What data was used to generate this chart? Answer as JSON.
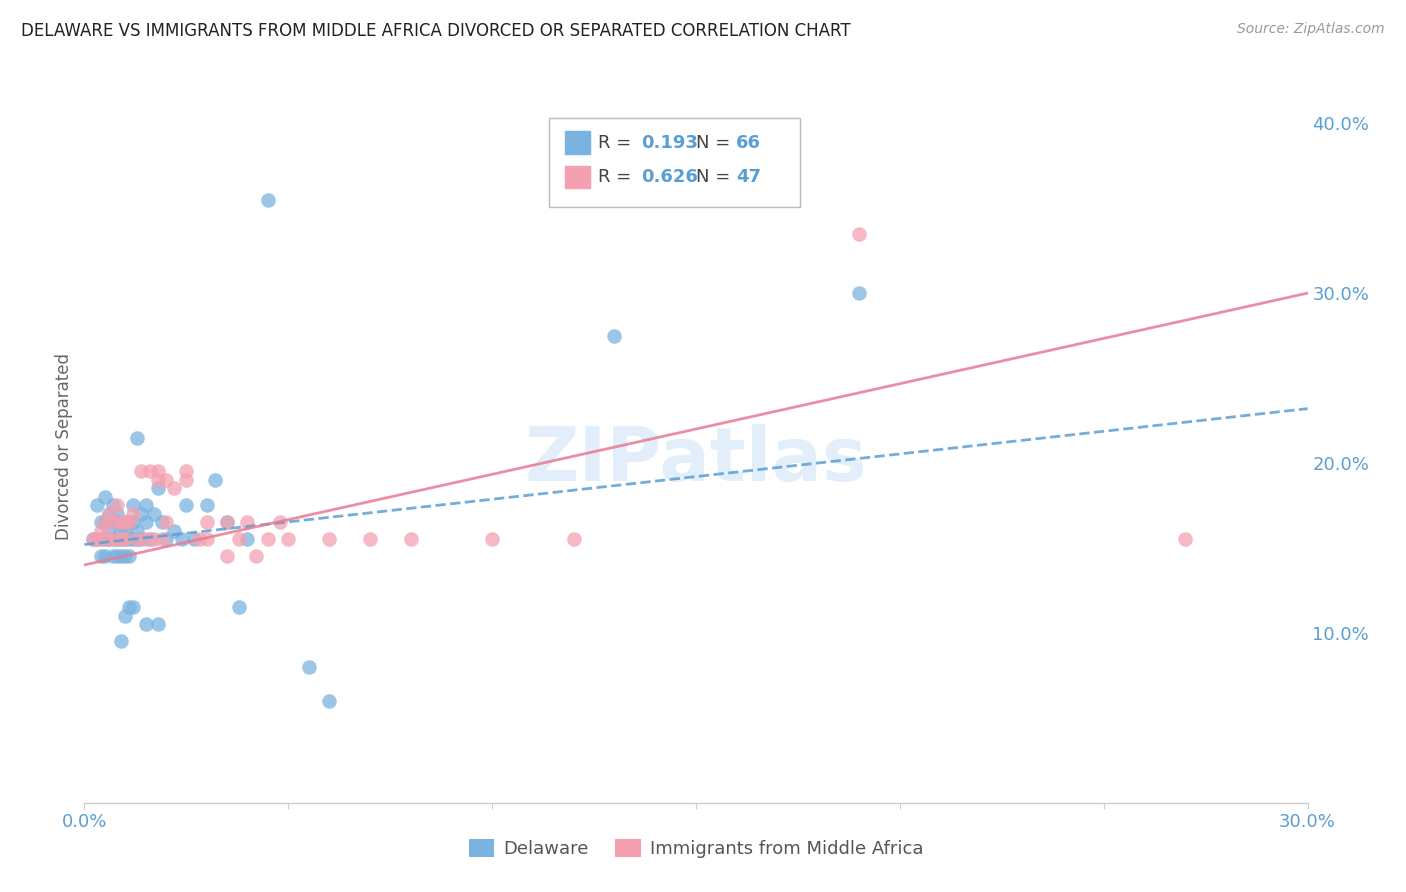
{
  "title": "DELAWARE VS IMMIGRANTS FROM MIDDLE AFRICA DIVORCED OR SEPARATED CORRELATION CHART",
  "source": "Source: ZipAtlas.com",
  "ylabel": "Divorced or Separated",
  "xlim": [
    0.0,
    0.3
  ],
  "ylim": [
    0.0,
    0.42
  ],
  "y_ticks_right": [
    0.1,
    0.2,
    0.3,
    0.4
  ],
  "y_tick_labels_right": [
    "10.0%",
    "20.0%",
    "30.0%",
    "40.0%"
  ],
  "grid_color": "#cccccc",
  "background_color": "#ffffff",
  "watermark": "ZIPatlas",
  "legend_R1_val": "0.193",
  "legend_N1_val": "66",
  "legend_R2_val": "0.626",
  "legend_N2_val": "47",
  "series1_color": "#7ab3e0",
  "series2_color": "#f4a0b0",
  "line1_color": "#5a9fd4",
  "line2_color": "#e87a94",
  "title_color": "#222222",
  "axis_label_color": "#5a9fd4",
  "series1_label": "Delaware",
  "series2_label": "Immigrants from Middle Africa",
  "delaware_x": [
    0.002,
    0.003,
    0.003,
    0.004,
    0.004,
    0.004,
    0.005,
    0.005,
    0.005,
    0.005,
    0.006,
    0.006,
    0.006,
    0.007,
    0.007,
    0.007,
    0.007,
    0.008,
    0.008,
    0.008,
    0.008,
    0.009,
    0.009,
    0.009,
    0.01,
    0.01,
    0.01,
    0.01,
    0.011,
    0.011,
    0.011,
    0.012,
    0.012,
    0.012,
    0.013,
    0.013,
    0.014,
    0.014,
    0.015,
    0.015,
    0.016,
    0.017,
    0.018,
    0.019,
    0.02,
    0.022,
    0.024,
    0.025,
    0.027,
    0.03,
    0.032,
    0.035,
    0.038,
    0.04,
    0.012,
    0.015,
    0.018,
    0.009,
    0.01,
    0.011,
    0.045,
    0.013,
    0.19,
    0.13,
    0.055,
    0.06
  ],
  "delaware_y": [
    0.155,
    0.175,
    0.155,
    0.165,
    0.155,
    0.145,
    0.18,
    0.165,
    0.155,
    0.145,
    0.17,
    0.16,
    0.155,
    0.175,
    0.165,
    0.155,
    0.145,
    0.17,
    0.165,
    0.155,
    0.145,
    0.16,
    0.155,
    0.145,
    0.165,
    0.16,
    0.155,
    0.145,
    0.165,
    0.155,
    0.145,
    0.175,
    0.165,
    0.155,
    0.16,
    0.155,
    0.17,
    0.155,
    0.175,
    0.165,
    0.155,
    0.17,
    0.185,
    0.165,
    0.155,
    0.16,
    0.155,
    0.175,
    0.155,
    0.175,
    0.19,
    0.165,
    0.115,
    0.155,
    0.115,
    0.105,
    0.105,
    0.095,
    0.11,
    0.115,
    0.355,
    0.215,
    0.3,
    0.275,
    0.08,
    0.06
  ],
  "immigrants_x": [
    0.002,
    0.003,
    0.004,
    0.005,
    0.005,
    0.006,
    0.006,
    0.007,
    0.008,
    0.008,
    0.009,
    0.009,
    0.01,
    0.01,
    0.011,
    0.012,
    0.013,
    0.014,
    0.015,
    0.016,
    0.017,
    0.018,
    0.019,
    0.02,
    0.022,
    0.025,
    0.028,
    0.03,
    0.035,
    0.038,
    0.04,
    0.042,
    0.045,
    0.048,
    0.05,
    0.018,
    0.02,
    0.025,
    0.03,
    0.035,
    0.19,
    0.06,
    0.07,
    0.08,
    0.1,
    0.12,
    0.27
  ],
  "immigrants_y": [
    0.155,
    0.155,
    0.16,
    0.165,
    0.155,
    0.17,
    0.155,
    0.165,
    0.175,
    0.155,
    0.165,
    0.155,
    0.165,
    0.155,
    0.165,
    0.17,
    0.155,
    0.195,
    0.155,
    0.195,
    0.155,
    0.19,
    0.155,
    0.165,
    0.185,
    0.195,
    0.155,
    0.165,
    0.145,
    0.155,
    0.165,
    0.145,
    0.155,
    0.165,
    0.155,
    0.195,
    0.19,
    0.19,
    0.155,
    0.165,
    0.335,
    0.155,
    0.155,
    0.155,
    0.155,
    0.155,
    0.155
  ],
  "line1_x0": 0.0,
  "line1_x1": 0.3,
  "line1_y0": 0.152,
  "line1_y1": 0.232,
  "line2_x0": 0.0,
  "line2_x1": 0.3,
  "line2_y0": 0.14,
  "line2_y1": 0.3
}
